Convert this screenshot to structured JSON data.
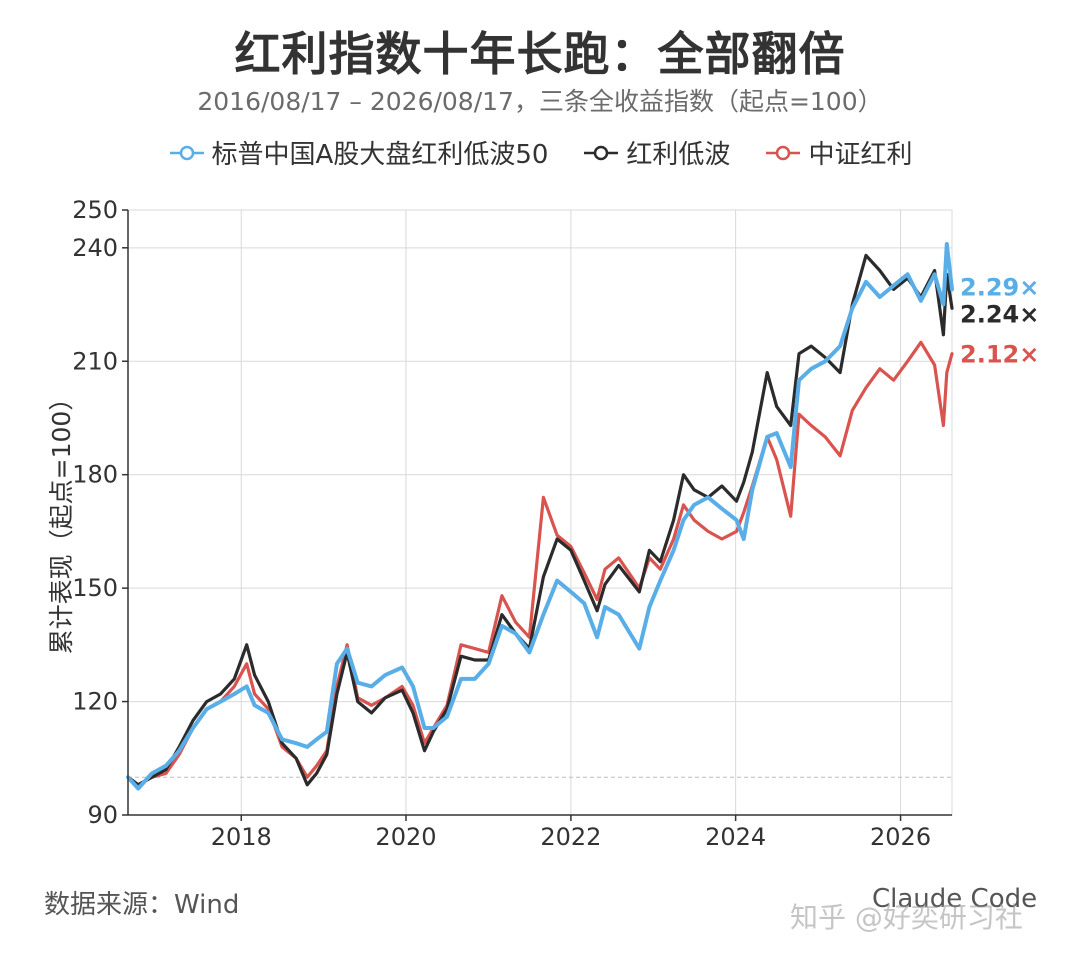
{
  "header": {
    "title": "红利指数十年长跑：全部翻倍",
    "subtitle": "2016/08/17 – 2026/08/17，三条全收益指数（起点=100）"
  },
  "footer": {
    "source": "数据来源：Wind",
    "credit": "Claude Code",
    "watermark": "知乎 @好奕研习社"
  },
  "colors": {
    "sp": "#5aaee8",
    "lowvol": "#2b2b2b",
    "csi": "#d9534f",
    "grid": "#d9d9d9",
    "axis": "#333333"
  },
  "chart_data": {
    "type": "line",
    "title": "红利指数十年长跑：全部翻倍",
    "subtitle": "2016/08/17 – 2026/08/17，三条全收益指数（起点=100）",
    "xlabel": "",
    "ylabel": "累计表现（起点=100）",
    "xlim": [
      "2016-08-17",
      "2026-08-17"
    ],
    "ylim": [
      90,
      250
    ],
    "x_ticks": [
      "2018",
      "2020",
      "2022",
      "2024",
      "2026"
    ],
    "y_ticks": [
      90,
      120,
      150,
      180,
      210,
      240,
      250
    ],
    "baseline": 100,
    "grid": true,
    "legend": "top",
    "end_labels": [
      "2.29×",
      "2.24×",
      "2.12×"
    ],
    "series": [
      {
        "name": "标普中国A股大盘红利低波50",
        "color": "#5aaee8",
        "end_label": "2.29×",
        "points": [
          [
            "2016-08-17",
            100
          ],
          [
            "2016-10-01",
            97
          ],
          [
            "2016-12-01",
            101
          ],
          [
            "2017-02-01",
            103
          ],
          [
            "2017-04-01",
            107
          ],
          [
            "2017-06-01",
            113
          ],
          [
            "2017-08-01",
            118
          ],
          [
            "2017-10-01",
            120
          ],
          [
            "2017-12-01",
            122
          ],
          [
            "2018-01-25",
            124
          ],
          [
            "2018-03-01",
            119
          ],
          [
            "2018-05-01",
            117
          ],
          [
            "2018-07-01",
            110
          ],
          [
            "2018-09-01",
            109
          ],
          [
            "2018-10-20",
            108
          ],
          [
            "2018-12-01",
            110
          ],
          [
            "2019-01-15",
            112
          ],
          [
            "2019-03-01",
            130
          ],
          [
            "2019-04-15",
            134
          ],
          [
            "2019-06-01",
            125
          ],
          [
            "2019-08-01",
            124
          ],
          [
            "2019-10-01",
            127
          ],
          [
            "2019-12-15",
            129
          ],
          [
            "2020-02-01",
            124
          ],
          [
            "2020-03-23",
            113
          ],
          [
            "2020-05-01",
            113
          ],
          [
            "2020-07-01",
            116
          ],
          [
            "2020-09-01",
            126
          ],
          [
            "2020-11-01",
            126
          ],
          [
            "2021-01-01",
            130
          ],
          [
            "2021-03-01",
            140
          ],
          [
            "2021-05-01",
            138
          ],
          [
            "2021-07-01",
            133
          ],
          [
            "2021-09-01",
            143
          ],
          [
            "2021-11-01",
            152
          ],
          [
            "2022-01-01",
            149
          ],
          [
            "2022-03-01",
            146
          ],
          [
            "2022-04-27",
            137
          ],
          [
            "2022-06-01",
            145
          ],
          [
            "2022-08-01",
            143
          ],
          [
            "2022-10-31",
            134
          ],
          [
            "2022-12-15",
            145
          ],
          [
            "2023-02-01",
            152
          ],
          [
            "2023-04-01",
            160
          ],
          [
            "2023-05-15",
            168
          ],
          [
            "2023-07-01",
            172
          ],
          [
            "2023-09-01",
            174
          ],
          [
            "2023-11-01",
            171
          ],
          [
            "2024-01-05",
            168
          ],
          [
            "2024-02-06",
            163
          ],
          [
            "2024-03-15",
            176
          ],
          [
            "2024-05-20",
            190
          ],
          [
            "2024-07-01",
            191
          ],
          [
            "2024-09-01",
            182
          ],
          [
            "2024-10-08",
            205
          ],
          [
            "2024-12-01",
            208
          ],
          [
            "2025-02-01",
            210
          ],
          [
            "2025-04-08",
            214
          ],
          [
            "2025-06-01",
            224
          ],
          [
            "2025-08-01",
            231
          ],
          [
            "2025-10-01",
            227
          ],
          [
            "2025-12-01",
            230
          ],
          [
            "2026-02-01",
            233
          ],
          [
            "2026-04-01",
            226
          ],
          [
            "2026-06-01",
            233
          ],
          [
            "2026-07-10",
            225
          ],
          [
            "2026-07-25",
            241
          ],
          [
            "2026-08-17",
            229
          ]
        ]
      },
      {
        "name": "红利低波",
        "color": "#2b2b2b",
        "end_label": "2.24×",
        "points": [
          [
            "2016-08-17",
            100
          ],
          [
            "2016-10-01",
            98
          ],
          [
            "2016-12-01",
            100
          ],
          [
            "2017-02-01",
            102
          ],
          [
            "2017-04-01",
            108
          ],
          [
            "2017-06-01",
            115
          ],
          [
            "2017-08-01",
            120
          ],
          [
            "2017-10-01",
            122
          ],
          [
            "2017-12-01",
            126
          ],
          [
            "2018-01-25",
            135
          ],
          [
            "2018-03-01",
            127
          ],
          [
            "2018-05-01",
            120
          ],
          [
            "2018-07-01",
            109
          ],
          [
            "2018-09-01",
            105
          ],
          [
            "2018-10-20",
            98
          ],
          [
            "2018-12-01",
            101
          ],
          [
            "2019-01-15",
            106
          ],
          [
            "2019-03-01",
            122
          ],
          [
            "2019-04-15",
            133
          ],
          [
            "2019-06-01",
            120
          ],
          [
            "2019-08-01",
            117
          ],
          [
            "2019-10-01",
            121
          ],
          [
            "2019-12-15",
            123
          ],
          [
            "2020-02-01",
            117
          ],
          [
            "2020-03-23",
            107
          ],
          [
            "2020-05-01",
            112
          ],
          [
            "2020-07-01",
            118
          ],
          [
            "2020-09-01",
            132
          ],
          [
            "2020-11-01",
            131
          ],
          [
            "2021-01-01",
            131
          ],
          [
            "2021-03-01",
            143
          ],
          [
            "2021-05-01",
            138
          ],
          [
            "2021-07-01",
            134
          ],
          [
            "2021-09-01",
            153
          ],
          [
            "2021-11-01",
            163
          ],
          [
            "2022-01-01",
            160
          ],
          [
            "2022-03-01",
            152
          ],
          [
            "2022-04-27",
            144
          ],
          [
            "2022-06-01",
            151
          ],
          [
            "2022-08-01",
            156
          ],
          [
            "2022-10-31",
            149
          ],
          [
            "2022-12-15",
            160
          ],
          [
            "2023-02-01",
            157
          ],
          [
            "2023-04-01",
            168
          ],
          [
            "2023-05-15",
            180
          ],
          [
            "2023-07-01",
            176
          ],
          [
            "2023-09-01",
            174
          ],
          [
            "2023-11-01",
            177
          ],
          [
            "2024-01-05",
            173
          ],
          [
            "2024-02-06",
            178
          ],
          [
            "2024-03-15",
            186
          ],
          [
            "2024-05-20",
            207
          ],
          [
            "2024-07-01",
            198
          ],
          [
            "2024-09-01",
            193
          ],
          [
            "2024-10-08",
            212
          ],
          [
            "2024-12-01",
            214
          ],
          [
            "2025-02-01",
            211
          ],
          [
            "2025-04-08",
            207
          ],
          [
            "2025-06-01",
            225
          ],
          [
            "2025-08-01",
            238
          ],
          [
            "2025-10-01",
            234
          ],
          [
            "2025-12-01",
            229
          ],
          [
            "2026-02-01",
            232
          ],
          [
            "2026-04-01",
            227
          ],
          [
            "2026-06-01",
            234
          ],
          [
            "2026-07-10",
            217
          ],
          [
            "2026-07-25",
            233
          ],
          [
            "2026-08-17",
            224
          ]
        ]
      },
      {
        "name": "中证红利",
        "color": "#d9534f",
        "end_label": "2.12×",
        "points": [
          [
            "2016-08-17",
            100
          ],
          [
            "2016-10-01",
            98
          ],
          [
            "2016-12-01",
            100
          ],
          [
            "2017-02-01",
            101
          ],
          [
            "2017-04-01",
            106
          ],
          [
            "2017-06-01",
            113
          ],
          [
            "2017-08-01",
            118
          ],
          [
            "2017-10-01",
            120
          ],
          [
            "2017-12-01",
            124
          ],
          [
            "2018-01-25",
            130
          ],
          [
            "2018-03-01",
            122
          ],
          [
            "2018-05-01",
            118
          ],
          [
            "2018-07-01",
            108
          ],
          [
            "2018-09-01",
            105
          ],
          [
            "2018-10-20",
            100
          ],
          [
            "2018-12-01",
            103
          ],
          [
            "2019-01-15",
            107
          ],
          [
            "2019-03-01",
            124
          ],
          [
            "2019-04-15",
            135
          ],
          [
            "2019-06-01",
            121
          ],
          [
            "2019-08-01",
            119
          ],
          [
            "2019-10-01",
            121
          ],
          [
            "2019-12-15",
            124
          ],
          [
            "2020-02-01",
            119
          ],
          [
            "2020-03-23",
            109
          ],
          [
            "2020-05-01",
            113
          ],
          [
            "2020-07-01",
            119
          ],
          [
            "2020-09-01",
            135
          ],
          [
            "2020-11-01",
            134
          ],
          [
            "2021-01-01",
            133
          ],
          [
            "2021-03-01",
            148
          ],
          [
            "2021-05-01",
            141
          ],
          [
            "2021-07-01",
            137
          ],
          [
            "2021-09-01",
            174
          ],
          [
            "2021-11-01",
            164
          ],
          [
            "2022-01-01",
            161
          ],
          [
            "2022-03-01",
            154
          ],
          [
            "2022-04-27",
            147
          ],
          [
            "2022-06-01",
            155
          ],
          [
            "2022-08-01",
            158
          ],
          [
            "2022-10-31",
            150
          ],
          [
            "2022-12-15",
            158
          ],
          [
            "2023-02-01",
            155
          ],
          [
            "2023-04-01",
            163
          ],
          [
            "2023-05-15",
            172
          ],
          [
            "2023-07-01",
            168
          ],
          [
            "2023-09-01",
            165
          ],
          [
            "2023-11-01",
            163
          ],
          [
            "2024-01-05",
            165
          ],
          [
            "2024-02-06",
            170
          ],
          [
            "2024-03-15",
            177
          ],
          [
            "2024-05-20",
            190
          ],
          [
            "2024-07-01",
            184
          ],
          [
            "2024-09-01",
            169
          ],
          [
            "2024-10-08",
            196
          ],
          [
            "2024-12-01",
            193
          ],
          [
            "2025-02-01",
            190
          ],
          [
            "2025-04-08",
            185
          ],
          [
            "2025-06-01",
            197
          ],
          [
            "2025-08-01",
            203
          ],
          [
            "2025-10-01",
            208
          ],
          [
            "2025-12-01",
            205
          ],
          [
            "2026-02-01",
            210
          ],
          [
            "2026-04-01",
            215
          ],
          [
            "2026-06-01",
            209
          ],
          [
            "2026-07-10",
            193
          ],
          [
            "2026-07-25",
            207
          ],
          [
            "2026-08-17",
            212
          ]
        ]
      }
    ]
  }
}
